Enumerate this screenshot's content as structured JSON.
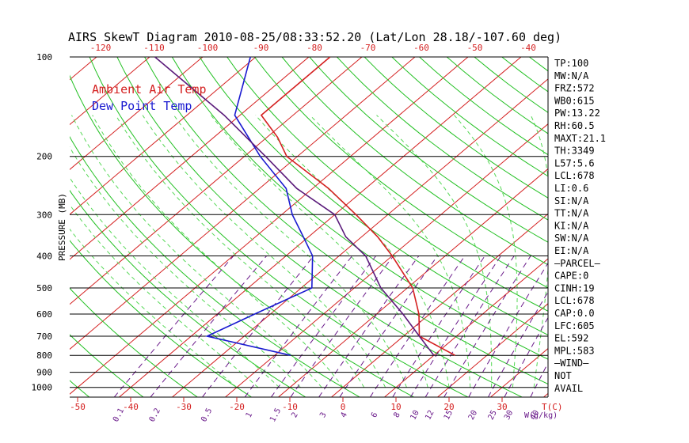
{
  "chart_data": {
    "type": "line",
    "title": "AIRS SkewT Diagram 2010-08-25/08:33:52.20 (Lat/Lon 28.18/-107.60 deg)",
    "ylabel": "PRESSURE (MB)",
    "xlabel": "T(C)",
    "mixing_ratio_label": "W(g/kg)",
    "y_scale": "log",
    "ylim": [
      1070,
      100
    ],
    "xlim": [
      -52,
      40
    ],
    "pressure_ticks": [
      100,
      200,
      300,
      400,
      500,
      600,
      700,
      800,
      900,
      1000
    ],
    "temp_ticks_bottom": [
      -50,
      -40,
      -30,
      -20,
      -10,
      0,
      10,
      20,
      30
    ],
    "temp_ticks_top": [
      -120,
      -110,
      -100,
      -90,
      -80,
      -70,
      -60,
      -50,
      -40
    ],
    "mixing_ratio_ticks": [
      "0.1",
      "0.2",
      "0.5",
      "1",
      "1.5",
      "2",
      "3",
      "4",
      "6",
      "8",
      "10",
      "12",
      "15",
      "20",
      "25",
      "30",
      "40"
    ],
    "legend": [
      {
        "label": "Ambient Air Temp",
        "color": "#d42020"
      },
      {
        "label": "Dew Point Temp",
        "color": "#1a1ad0"
      }
    ],
    "series": [
      {
        "name": "Ambient Air Temp",
        "color": "#d42020",
        "pressure": [
          100,
          150,
          175,
          200,
          250,
          300,
          350,
          400,
          500,
          600,
          700,
          800
        ],
        "temperature": [
          -76,
          -76,
          -68,
          -62,
          -47,
          -36,
          -27,
          -20,
          -9,
          -2,
          3,
          14
        ]
      },
      {
        "name": "Dew Point Temp",
        "color": "#1a1ad0",
        "pressure": [
          100,
          150,
          200,
          250,
          300,
          350,
          400,
          500,
          600,
          700,
          800
        ],
        "temperature": [
          -91,
          -81,
          -67,
          -55,
          -48,
          -41,
          -35,
          -28,
          -33,
          -37,
          -17
        ]
      },
      {
        "name": "Parcel",
        "color": "#5a1a7a",
        "pressure": [
          100,
          150,
          200,
          250,
          300,
          350,
          400,
          500,
          600,
          700,
          800
        ],
        "temperature": [
          -109,
          -83,
          -66,
          -53,
          -40,
          -33,
          -25,
          -15,
          -5,
          3,
          10
        ]
      }
    ],
    "indices": [
      "TP:100",
      "MW:N/A",
      "FRZ:572",
      "WB0:615",
      "PW:13.22",
      "RH:60.5",
      "MAXT:21.1",
      "TH:3349",
      "L57:5.6",
      "LCL:678",
      "LI:0.6",
      "SI:N/A",
      "TT:N/A",
      "KI:N/A",
      "SW:N/A",
      "EI:N/A",
      "—PARCEL—",
      "CAPE:0",
      "CINH:19",
      "LCL:678",
      "CAP:0.0",
      "LFC:605",
      "EL:592",
      "MPL:583",
      "—WIND—",
      "NOT",
      "AVAIL"
    ],
    "grid": true,
    "colors": {
      "isotherm": "#d42020",
      "dry_adiabat": "#22c022",
      "moist_adiabat": "#55d855",
      "mixing_ratio": "#6a1a8a",
      "isobar": "#000000"
    }
  }
}
